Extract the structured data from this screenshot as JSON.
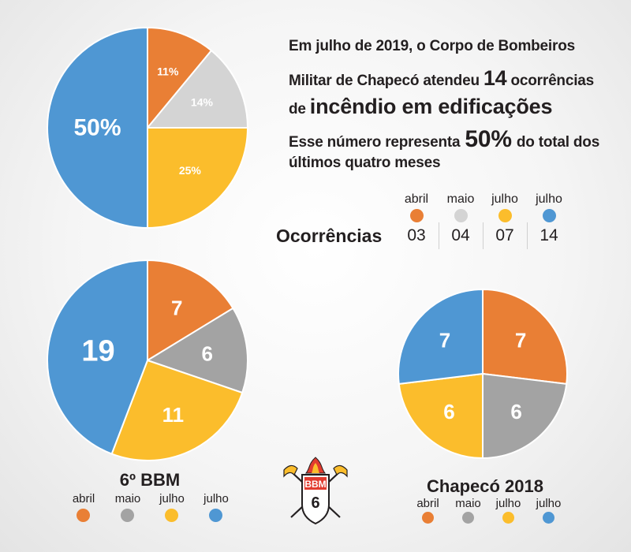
{
  "headline": {
    "line1": "Em julho de 2019, o Corpo de Bombeiros",
    "line2_a": "Militar de Chapecó atendeu",
    "line2_num": "14",
    "line2_b": "ocorrências",
    "line3_a": "de",
    "line3_b": "incêndio em edificações",
    "line4_a": "Esse número representa",
    "line4_num": "50%",
    "line4_b": "do total dos",
    "line5": "últimos quatro meses"
  },
  "colors": {
    "abril": "#e97f35",
    "maio": "#d4d4d4",
    "maio_dark": "#a3a3a3",
    "junho": "#fbbd2c",
    "julho": "#4f97d3"
  },
  "occurrences": {
    "label": "Ocorrências",
    "months": [
      "abril",
      "maio",
      "julho",
      "julho"
    ],
    "values": [
      "03",
      "04",
      "07",
      "14"
    ]
  },
  "bbm": {
    "title": "6º BBM",
    "months": [
      "abril",
      "maio",
      "julho",
      "julho"
    ]
  },
  "chapeco": {
    "title": "Chapecó 2018",
    "months": [
      "abril",
      "maio",
      "julho",
      "julho"
    ]
  },
  "logo": {
    "text_top": "BBM",
    "text_num": "6"
  },
  "chart_data": [
    {
      "type": "pie",
      "labels": [
        "abril",
        "maio",
        "julho",
        "julho"
      ],
      "values": [
        11,
        14,
        25,
        50
      ],
      "value_labels": [
        "11%",
        "14%",
        "25%",
        "50%"
      ]
    },
    {
      "type": "pie",
      "title": "6º BBM",
      "labels": [
        "abril",
        "maio",
        "julho",
        "julho"
      ],
      "values": [
        7,
        6,
        11,
        19
      ],
      "value_labels": [
        "7",
        "6",
        "11",
        "19"
      ]
    },
    {
      "type": "pie",
      "title": "Chapecó 2018",
      "labels": [
        "abril",
        "maio",
        "julho",
        "julho"
      ],
      "values": [
        7,
        6,
        6,
        7
      ],
      "value_labels": [
        "7",
        "6",
        "6",
        "7"
      ]
    }
  ]
}
